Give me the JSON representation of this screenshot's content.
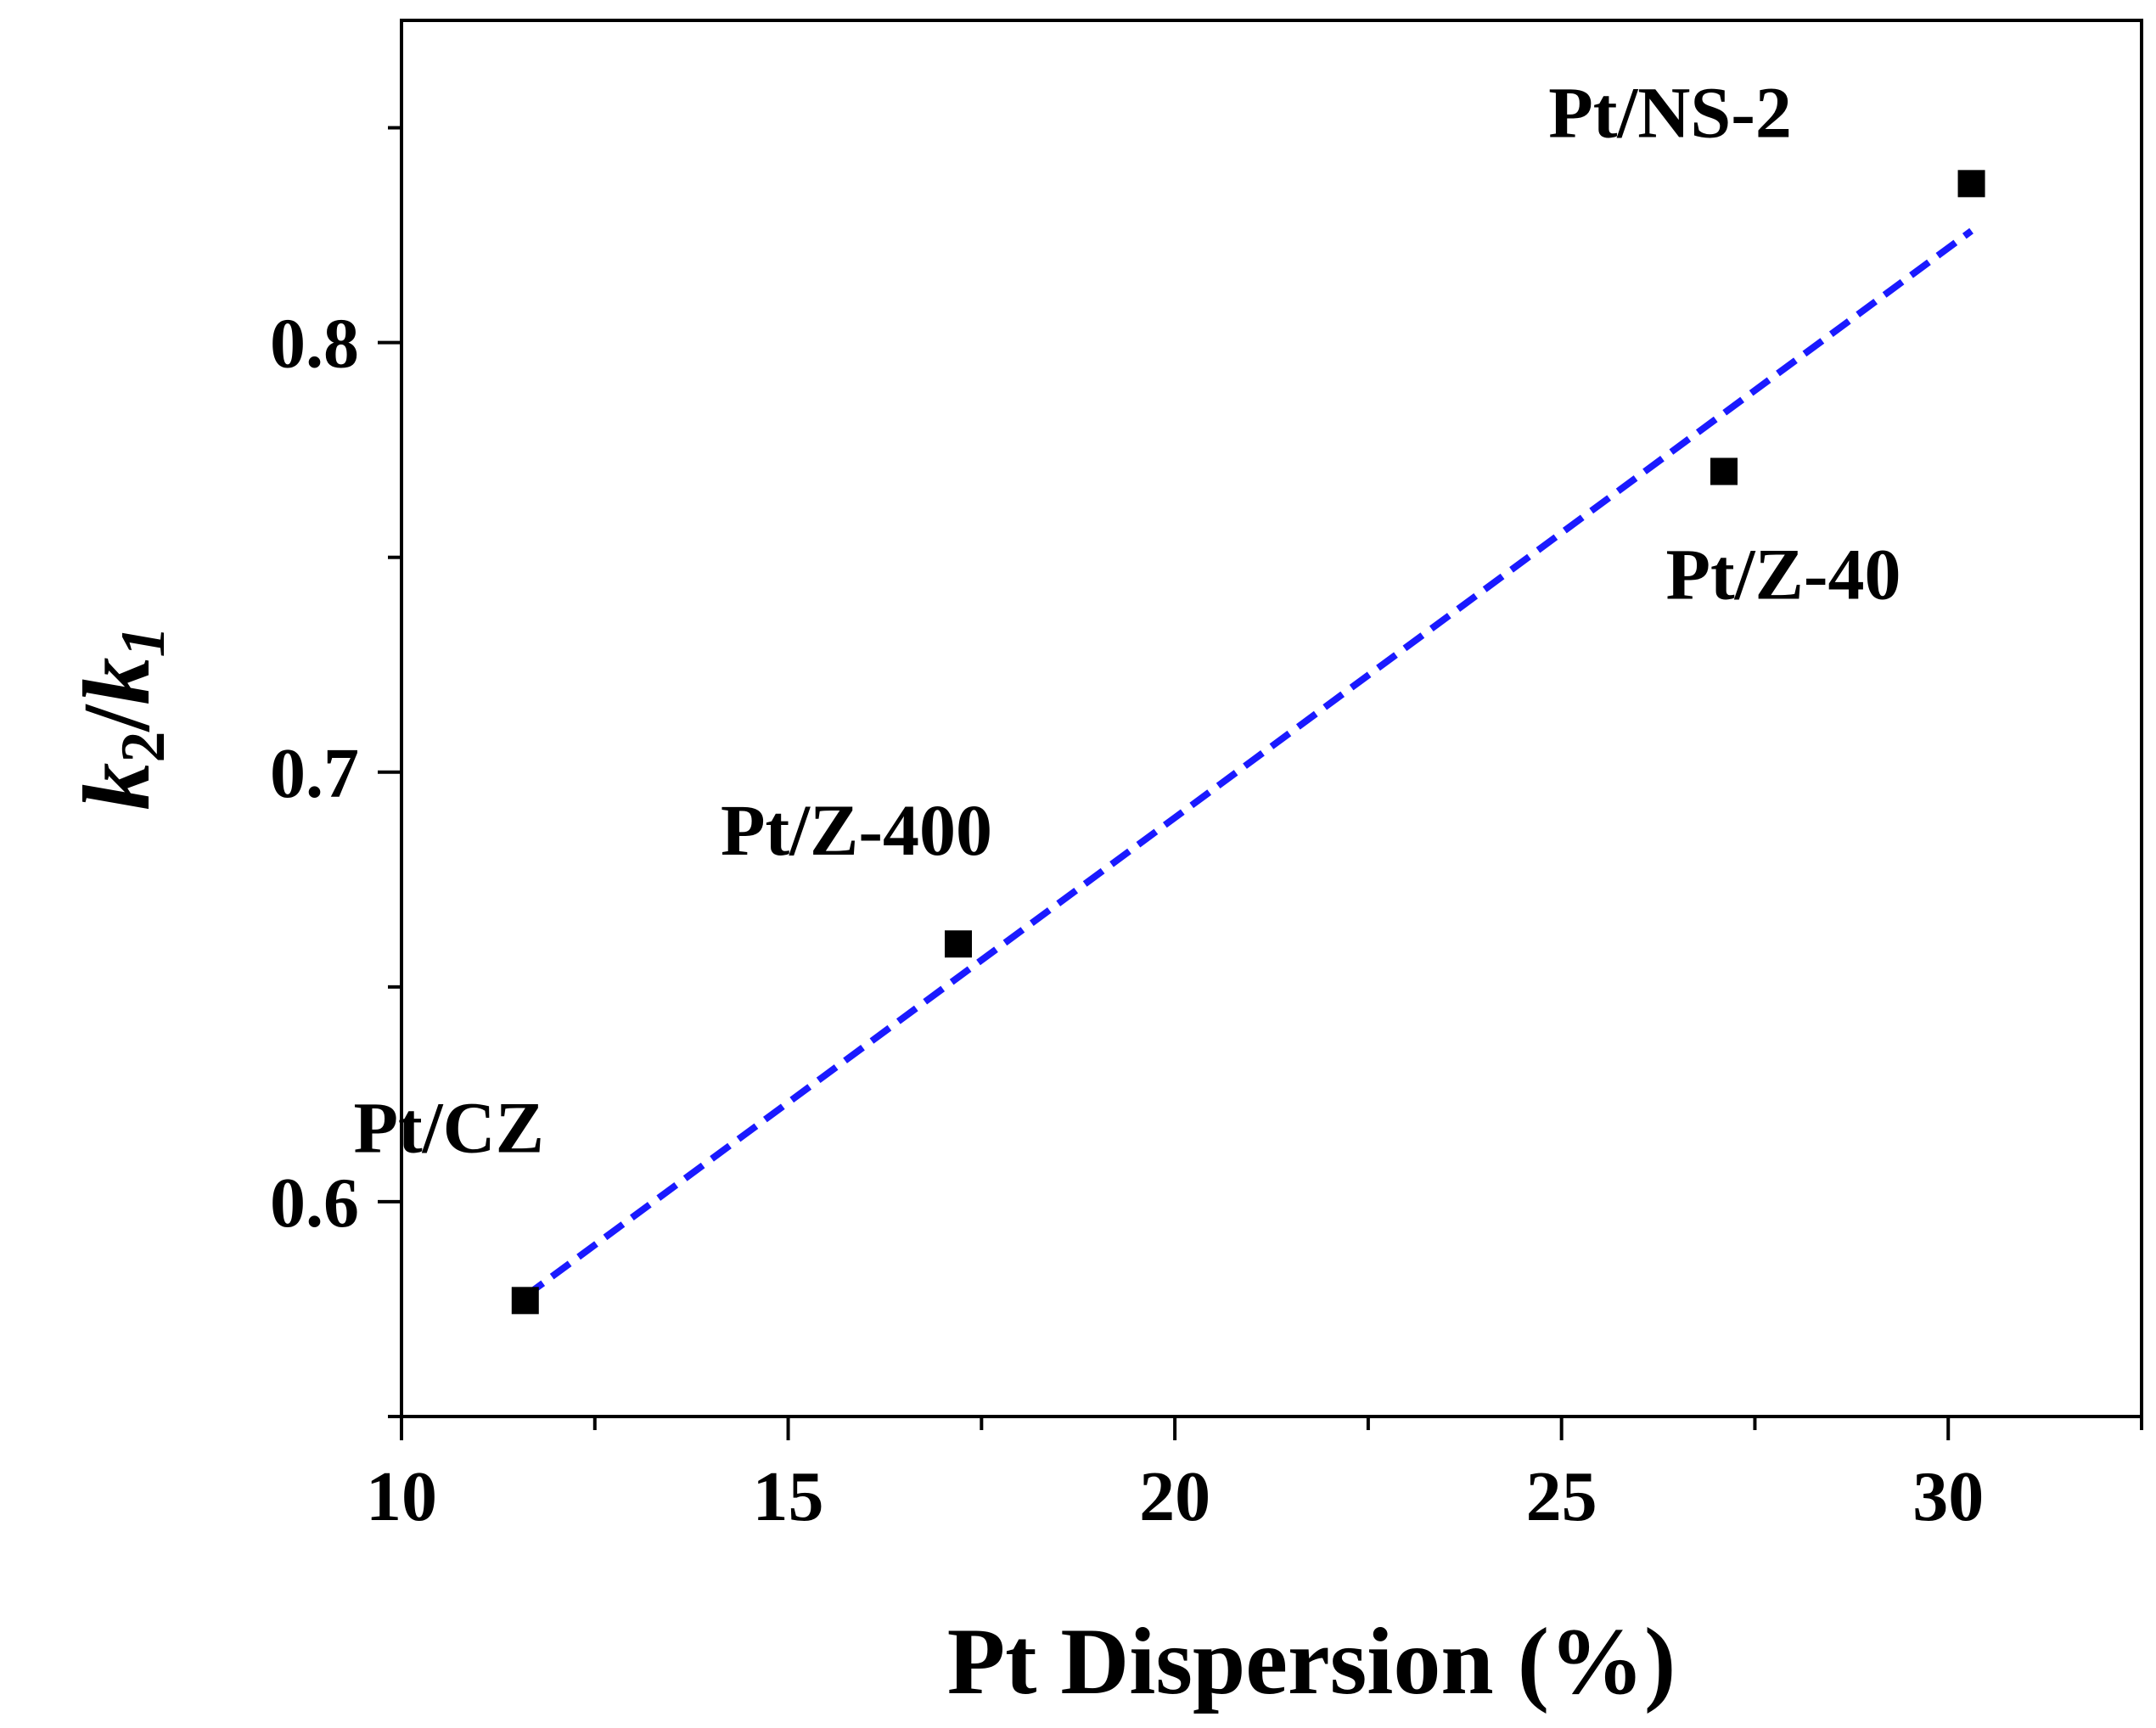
{
  "chart_data": {
    "type": "scatter",
    "title": "",
    "xlabel": "Pt Dispersion (%)",
    "ylabel": {
      "k2": "k",
      "sub2": "2",
      "slash": "/",
      "k1": "k",
      "sub1": "1"
    },
    "xlim": [
      10,
      32.5
    ],
    "ylim": [
      0.55,
      0.875
    ],
    "x_ticks": [
      10,
      15,
      20,
      25,
      30
    ],
    "x_tick_labels": [
      "10",
      "15",
      "20",
      "25",
      "30"
    ],
    "x_minor_ticks": [
      12.5,
      17.5,
      22.5,
      27.5,
      32.5
    ],
    "y_ticks": [
      0.6,
      0.7,
      0.8
    ],
    "y_tick_labels": [
      "0.6",
      "0.7",
      "0.8"
    ],
    "y_minor_ticks": [
      0.55,
      0.65,
      0.75,
      0.85
    ],
    "points": [
      {
        "label": "Pt/CZ",
        "x": 11.6,
        "y": 0.577
      },
      {
        "label": "Pt/Z-400",
        "x": 17.2,
        "y": 0.66
      },
      {
        "label": "Pt/Z-40",
        "x": 27.1,
        "y": 0.77
      },
      {
        "label": "Pt/NS-2",
        "x": 30.3,
        "y": 0.837
      }
    ],
    "fit_line": {
      "style": "dashed",
      "color": "#1a1aff",
      "x": [
        11.6,
        30.3
      ],
      "y": [
        0.578,
        0.826
      ]
    },
    "marker_color": "#000000",
    "grid": false,
    "legend": "none"
  }
}
